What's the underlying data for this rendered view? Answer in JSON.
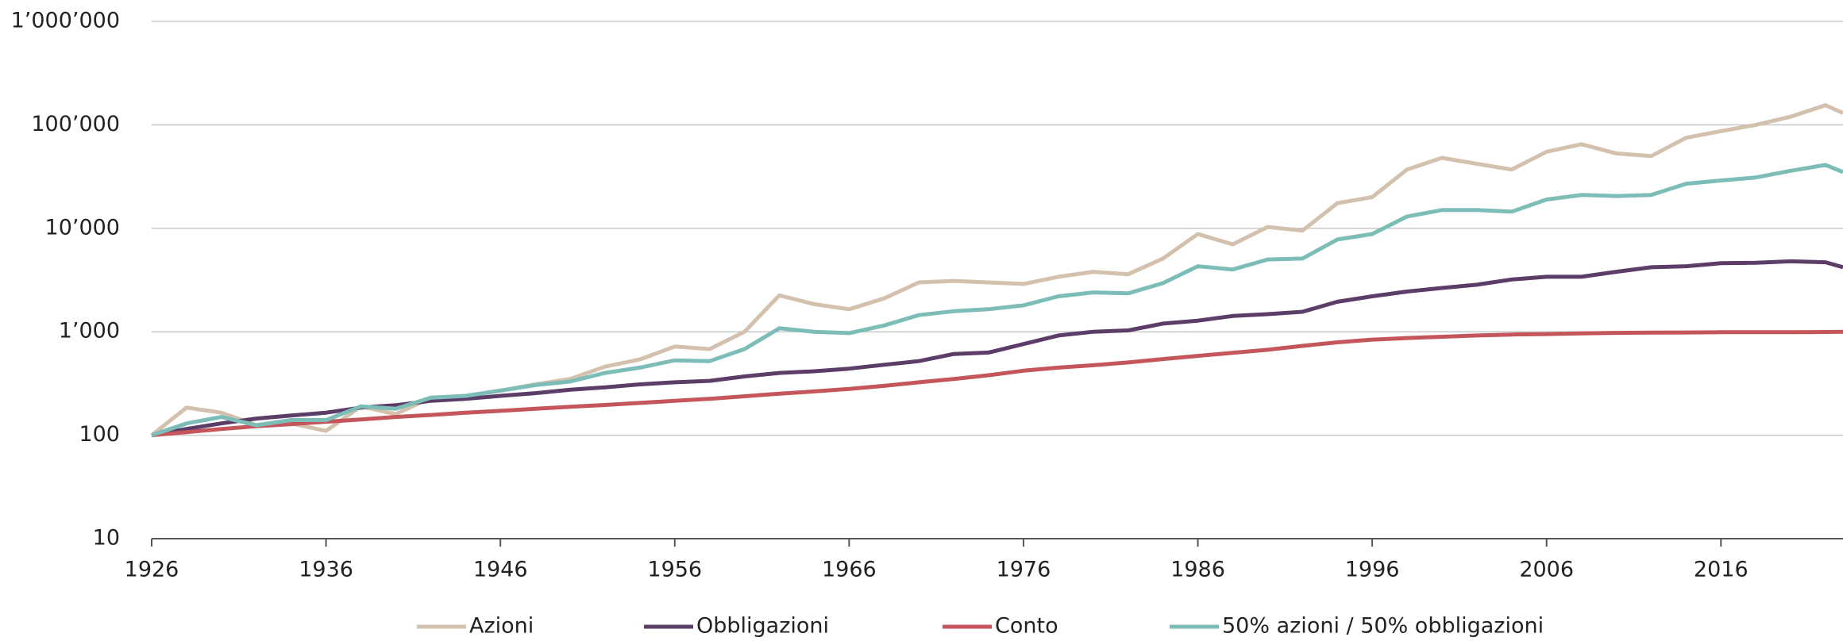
{
  "chart_data": {
    "type": "line",
    "x": [
      1926,
      1928,
      1930,
      1932,
      1934,
      1936,
      1938,
      1940,
      1942,
      1944,
      1946,
      1948,
      1950,
      1952,
      1954,
      1956,
      1958,
      1960,
      1962,
      1964,
      1966,
      1968,
      1970,
      1972,
      1974,
      1976,
      1978,
      1980,
      1982,
      1984,
      1986,
      1988,
      1990,
      1992,
      1994,
      1996,
      1998,
      2000,
      2002,
      2004,
      2006,
      2008,
      2010,
      2012,
      2014,
      2016,
      2018,
      2020,
      2022,
      2023
    ],
    "series": [
      {
        "name": "Azioni",
        "color": "#d3c1ae",
        "values": [
          100,
          185,
          165,
          125,
          130,
          110,
          190,
          160,
          230,
          240,
          270,
          310,
          350,
          460,
          540,
          720,
          680,
          1000,
          2250,
          1850,
          1650,
          2100,
          3000,
          3100,
          3000,
          2900,
          3400,
          3800,
          3600,
          5100,
          8800,
          7000,
          10300,
          9500,
          17500,
          20000,
          37000,
          48000,
          42000,
          37000,
          55000,
          65000,
          53000,
          50000,
          75000,
          87000,
          100000,
          120000,
          155000,
          130000
        ]
      },
      {
        "name": "Obbligazioni",
        "color": "#5b3d68",
        "values": [
          100,
          115,
          130,
          145,
          155,
          165,
          185,
          195,
          215,
          225,
          240,
          255,
          275,
          290,
          310,
          325,
          335,
          370,
          400,
          415,
          440,
          480,
          520,
          610,
          630,
          760,
          920,
          1000,
          1030,
          1200,
          1280,
          1420,
          1480,
          1560,
          1950,
          2200,
          2450,
          2650,
          2850,
          3200,
          3400,
          3400,
          3800,
          4200,
          4300,
          4600,
          4650,
          4800,
          4700,
          4200
        ]
      },
      {
        "name": "Conto",
        "color": "#c4565b",
        "values": [
          100,
          107,
          115,
          122,
          128,
          135,
          142,
          150,
          157,
          165,
          172,
          180,
          188,
          196,
          205,
          215,
          225,
          238,
          252,
          265,
          280,
          300,
          325,
          350,
          380,
          420,
          450,
          475,
          505,
          545,
          585,
          625,
          670,
          730,
          790,
          840,
          870,
          895,
          920,
          940,
          950,
          965,
          975,
          980,
          985,
          990,
          990,
          990,
          995,
          1000
        ]
      },
      {
        "name": "50% azioni / 50% obbligazioni",
        "color": "#7dbdb8",
        "values": [
          100,
          130,
          150,
          125,
          140,
          140,
          190,
          180,
          230,
          240,
          270,
          305,
          330,
          400,
          450,
          530,
          520,
          680,
          1080,
          1000,
          970,
          1150,
          1450,
          1580,
          1650,
          1800,
          2200,
          2400,
          2350,
          2950,
          4300,
          4000,
          5000,
          5100,
          7800,
          8800,
          13000,
          15000,
          15000,
          14500,
          19000,
          21000,
          20500,
          21000,
          27000,
          29000,
          31000,
          36000,
          41000,
          35000
        ]
      }
    ],
    "xlim": [
      1926,
      2023
    ],
    "xticks": [
      1926,
      1936,
      1946,
      1956,
      1966,
      1976,
      1986,
      1996,
      2006,
      2016
    ],
    "ylim": [
      10,
      1000000
    ],
    "log_y": true,
    "yticks": [
      10,
      100,
      {
        "value": 1000,
        "label": "1’000"
      },
      {
        "value": 10000,
        "label": "10’000"
      },
      {
        "value": 100000,
        "label": "100’000"
      },
      {
        "value": 1000000,
        "label": "1’000’000"
      }
    ],
    "grid": true,
    "legend": "bottom"
  }
}
